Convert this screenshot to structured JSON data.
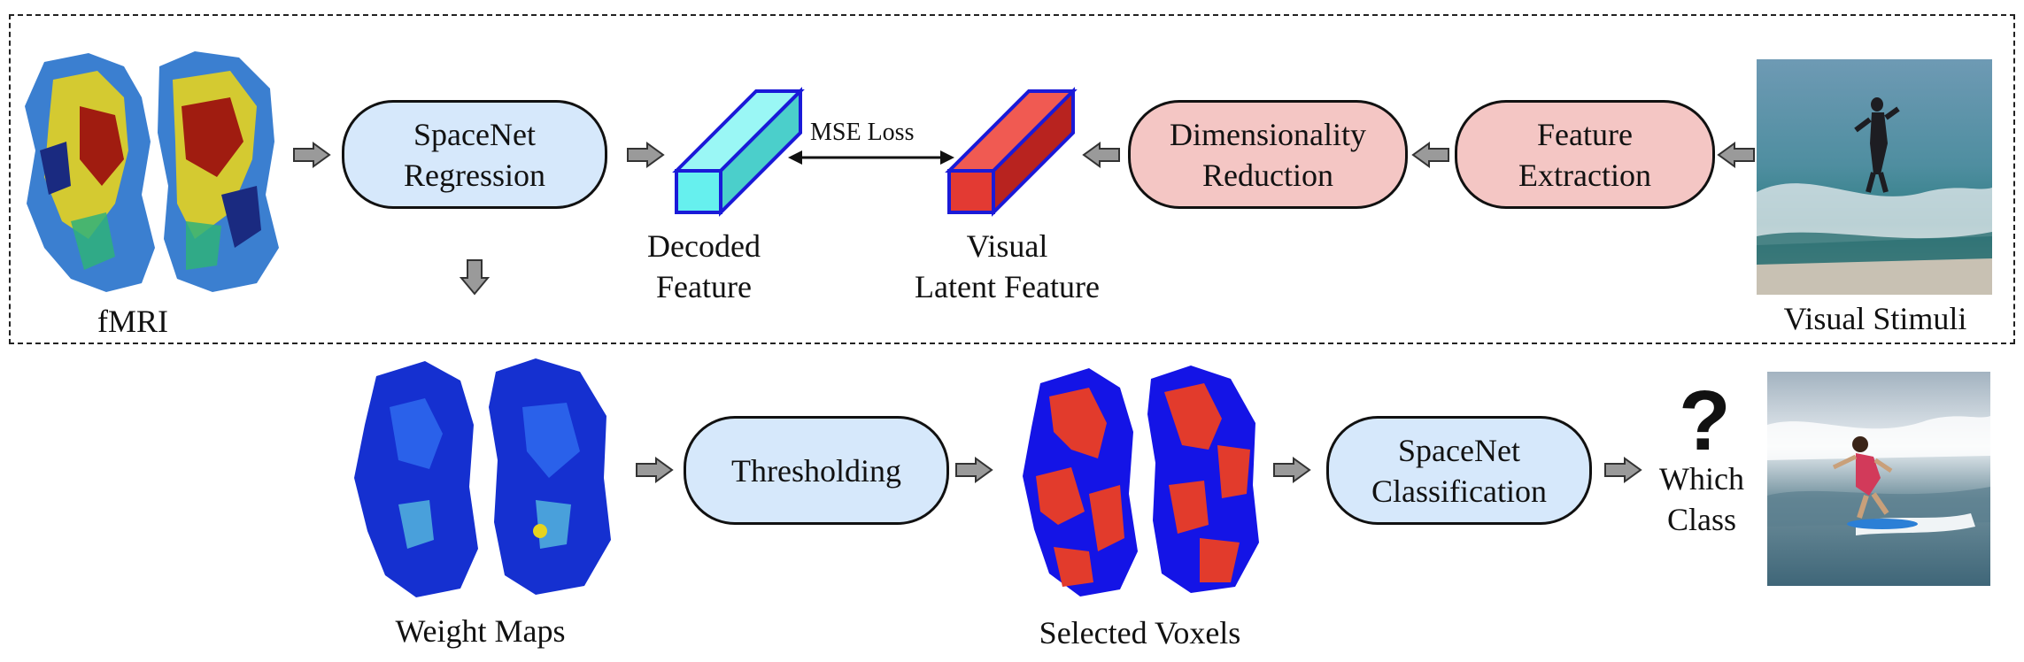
{
  "stage1": {
    "fmri_label": "fMRI",
    "spacenet_regression": "SpaceNet\nRegression",
    "decoded_feature": "Decoded\nFeature",
    "mse_loss": "MSE Loss",
    "visual_latent_feature": "Visual\nLatent Feature",
    "dimensionality_reduction": "Dimensionality\nReduction",
    "feature_extraction": "Feature\nExtraction",
    "visual_stimuli": "Visual Stimuli"
  },
  "stage2": {
    "weight_maps": "Weight Maps",
    "thresholding": "Thresholding",
    "selected_voxels": "Selected Voxels",
    "spacenet_classification": "SpaceNet\nClassification",
    "question_mark": "?",
    "which_class": "Which\nClass"
  },
  "colors": {
    "module_blue": "#d6e8fb",
    "module_pink": "#f4c6c4",
    "decoded_cube": "#66f0ee",
    "latent_cube": "#e33a33",
    "cube_edge": "#1a1ad8",
    "arrow_gray": "#9a9a9a"
  }
}
